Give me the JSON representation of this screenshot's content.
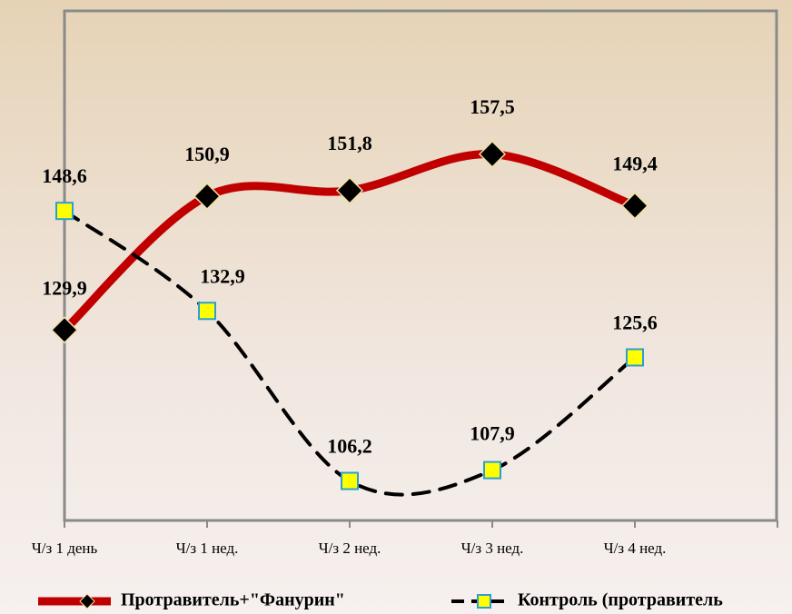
{
  "chart_data": {
    "type": "line",
    "categories": [
      "Ч/з 1 день",
      "Ч/з 1 нед.",
      "Ч/з 2 нед.",
      "Ч/з 3 нед.",
      "Ч/з 4 нед."
    ],
    "series": [
      {
        "name": "Протравитель+\"Фанурин\"",
        "color": "#c00000",
        "values": [
          129.9,
          150.9,
          151.8,
          157.5,
          149.4
        ],
        "value_labels": [
          "129,9",
          "150,9",
          "151,8",
          "157,5",
          "149,4"
        ]
      },
      {
        "name": "Контроль (протравитель",
        "color": "#000000",
        "values": [
          148.6,
          132.9,
          106.2,
          107.9,
          125.6
        ],
        "value_labels": [
          "148,6",
          "132,9",
          "106,2",
          "107,9",
          "125,6"
        ]
      }
    ],
    "ylim": [
      100,
      180
    ]
  }
}
